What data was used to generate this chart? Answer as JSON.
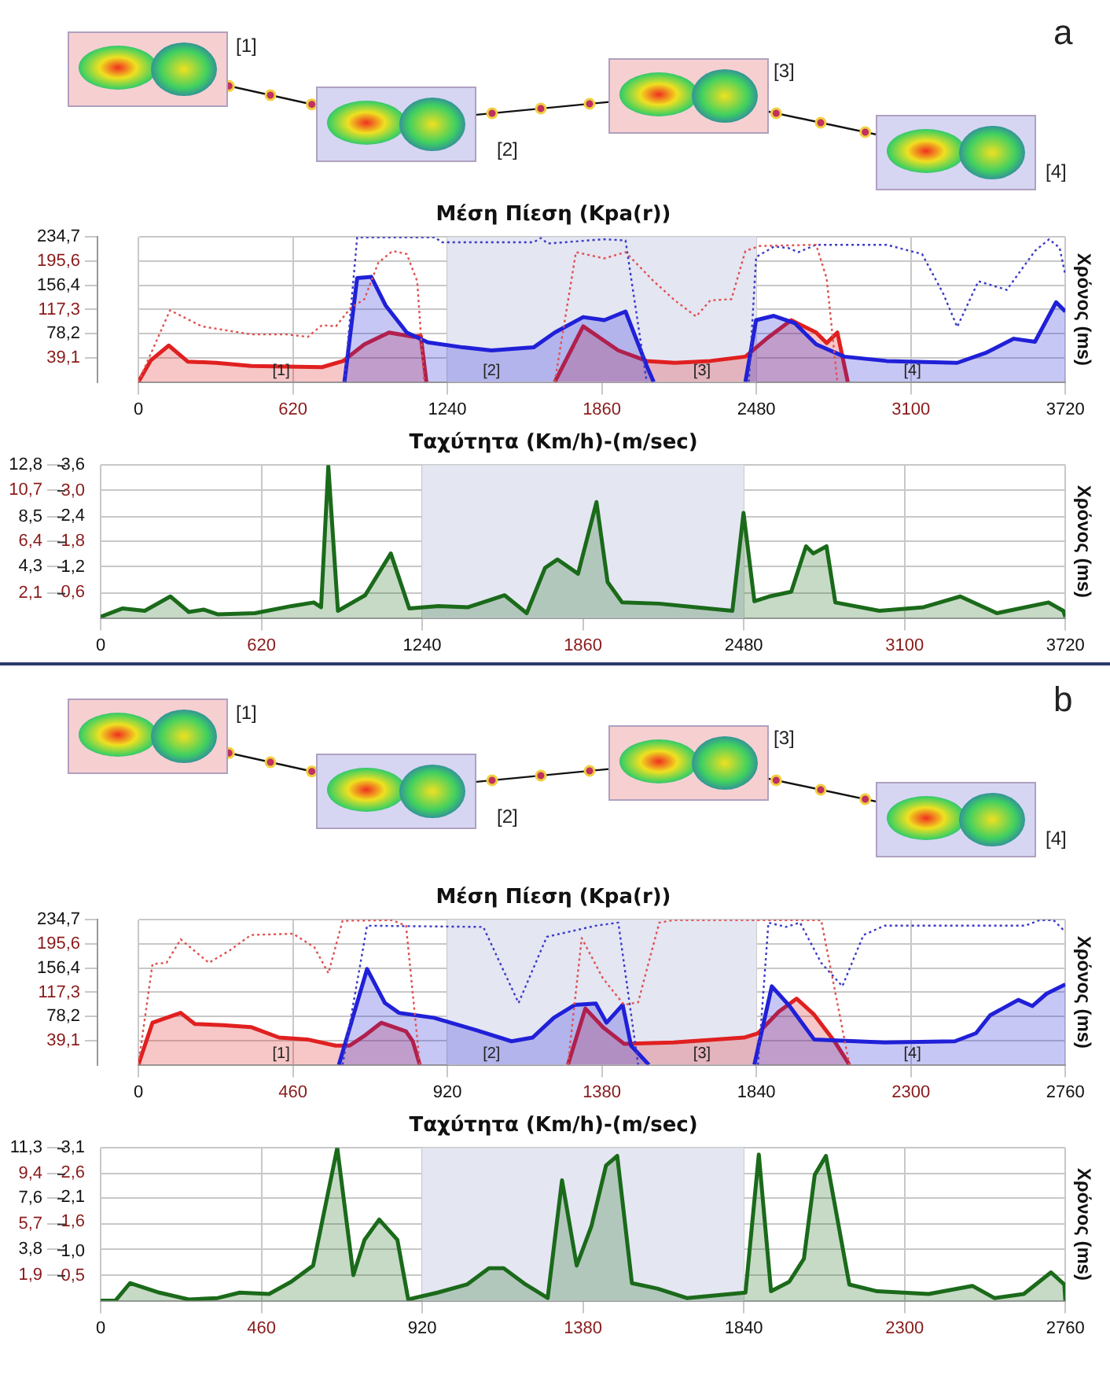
{
  "chart_data": [
    {
      "type": "line",
      "title": "Μέση Πίεση (Kpa(r))",
      "ylabel": "Χρόνος (ms)",
      "xlim": [
        0,
        3720
      ],
      "xticks": [
        0,
        620,
        1240,
        1860,
        2480,
        3100,
        3720
      ],
      "ylim": [
        0,
        234.7
      ],
      "yticks": [
        {
          "value": 39.1,
          "label": "39,1"
        },
        {
          "value": 78.2,
          "label": "78,2"
        },
        {
          "value": 117.3,
          "label": "117,3"
        },
        {
          "value": 156.4,
          "label": "156,4"
        },
        {
          "value": 195.6,
          "label": "195,6"
        },
        {
          "value": 234.7,
          "label": "234,7"
        }
      ],
      "grid": true,
      "bands": [
        {
          "axis": "x",
          "from": 1240,
          "to": 2480,
          "color": "#e4e6f2"
        }
      ],
      "annotations": [
        "[1]",
        "[2]",
        "[3]",
        "[4]",
        "a",
        "[1]",
        "[2]",
        "[3]",
        "[4]"
      ],
      "series": [
        {
          "color": "#e05050",
          "line_style": "dotted",
          "x": [
            0,
            127,
            255,
            453,
            595,
            680,
            737,
            793,
            850,
            907,
            963,
            1020,
            1077,
            1119,
            1147,
            1400,
            1671,
            1756,
            1870,
            1955,
            2068,
            2153,
            2238,
            2295,
            2380,
            2436,
            2493,
            2720,
            2762,
            2805
          ],
          "values": [
            0,
            116,
            90,
            77,
            77,
            73,
            92,
            90,
            119,
            134,
            193,
            212,
            207,
            163,
            0,
            null,
            0,
            210,
            200,
            210,
            163,
            132,
            106,
            132,
            134,
            212,
            220,
            222,
            168,
            0
          ]
        },
        {
          "color": "#3a3ac8",
          "line_style": "dotted",
          "x": [
            827,
            878,
            1190,
            1218,
            1586,
            1615,
            1643,
            1870,
            1955,
            2040,
            2250,
            2450,
            2479,
            2550,
            2607,
            2649,
            2720,
            3003,
            3145,
            3230,
            3286,
            3371,
            3485,
            3598,
            3655,
            3697,
            3720
          ],
          "values": [
            0,
            234,
            234,
            226,
            226,
            233,
            224,
            231,
            229,
            0,
            null,
            0,
            202,
            219,
            217,
            210,
            222,
            222,
            207,
            143,
            89,
            163,
            149,
            212,
            231,
            217,
            173
          ]
        },
        {
          "type": "area",
          "color": "#2020d8",
          "x": [
            827,
            878,
            935,
            992,
            1077,
            1162,
            1303,
            1417,
            1586,
            1671,
            1785,
            1870,
            1955,
            2040,
            2068,
            2250,
            2436,
            2479,
            2550,
            2635,
            2720,
            2833,
            3003,
            3286,
            3400,
            3513,
            3598,
            3683,
            3720
          ],
          "values": [
            0,
            168,
            170,
            124,
            80,
            64,
            56,
            51,
            56,
            80,
            105,
            100,
            114,
            26,
            0,
            null,
            0,
            100,
            107,
            95,
            61,
            41,
            34,
            31,
            47,
            70,
            65,
            129,
            114
          ]
        },
        {
          "type": "area",
          "color": "#e02020",
          "x": [
            0,
            50,
            122,
            198,
            312,
            453,
            737,
            822,
            907,
            1006,
            1105,
            1133,
            1156,
            1400,
            1671,
            1785,
            1926,
            2040,
            2153,
            2295,
            2436,
            2521,
            2620,
            2720,
            2762,
            2805,
            2847
          ],
          "values": [
            0,
            35,
            59,
            33,
            31,
            26,
            24,
            34,
            61,
            80,
            73,
            75,
            0,
            null,
            0,
            90,
            51,
            34,
            31,
            34,
            41,
            70,
            100,
            80,
            63,
            80,
            0
          ]
        }
      ]
    },
    {
      "type": "area",
      "title": "Ταχύτητα (Km/h)-(m/sec)",
      "y2label": "Χρόνος (ms)",
      "xlim": [
        0,
        3720
      ],
      "xticks": [
        0,
        620,
        1240,
        1860,
        2480,
        3100,
        3720
      ],
      "ylim": [
        0,
        12.8
      ],
      "yticks": [
        {
          "value": 2.1,
          "label": "2,1"
        },
        {
          "value": 4.3,
          "label": "4,3"
        },
        {
          "value": 6.4,
          "label": "6,4"
        },
        {
          "value": 8.5,
          "label": "8,5"
        },
        {
          "value": 10.7,
          "label": "10,7"
        },
        {
          "value": 12.8,
          "label": "12,8"
        }
      ],
      "y2lim": [
        0,
        3.6
      ],
      "y2ticks": [
        {
          "value": 0.6,
          "label": "0,6"
        },
        {
          "value": 1.2,
          "label": "1,2"
        },
        {
          "value": 1.8,
          "label": "1,8"
        },
        {
          "value": 2.4,
          "label": "2,4"
        },
        {
          "value": 3.0,
          "label": "3,0"
        },
        {
          "value": 3.6,
          "label": "3,6"
        }
      ],
      "grid": true,
      "bands": [
        {
          "axis": "x",
          "from": 1240,
          "to": 2480,
          "color": "#e4e6f2"
        }
      ],
      "series": [
        {
          "color": "#1a6a1a",
          "x": [
            0,
            85,
            170,
            269,
            340,
            397,
            453,
            595,
            737,
            822,
            850,
            878,
            915,
            1020,
            1119,
            1190,
            1303,
            1417,
            1558,
            1643,
            1714,
            1762,
            1841,
            1912,
            1955,
            2011,
            2153,
            2295,
            2436,
            2479,
            2521,
            2578,
            2663,
            2720,
            2748,
            2799,
            2833,
            3003,
            3173,
            3315,
            3456,
            3655,
            3712,
            3720
          ],
          "values": [
            0.1,
            0.8,
            0.6,
            1.8,
            0.5,
            0.7,
            0.3,
            0.4,
            1.0,
            1.3,
            0.9,
            12.7,
            0.6,
            1.9,
            5.4,
            0.8,
            1.0,
            0.9,
            1.9,
            0.4,
            4.2,
            4.9,
            3.7,
            9.7,
            3.0,
            1.3,
            1.2,
            0.9,
            0.6,
            8.8,
            1.4,
            1.8,
            2.2,
            6.0,
            5.4,
            6.0,
            1.3,
            0.6,
            0.9,
            1.8,
            0.4,
            1.3,
            0.6,
            0.1
          ]
        }
      ]
    },
    {
      "type": "line",
      "title": "Μέση Πίεση (Kpa(r))",
      "ylabel": "Χρόνος (ms)",
      "xlim": [
        0,
        2760
      ],
      "xticks": [
        0,
        460,
        920,
        1380,
        1840,
        2300,
        2760
      ],
      "ylim": [
        0,
        234.7
      ],
      "yticks": [
        {
          "value": 39.1,
          "label": "39,1"
        },
        {
          "value": 78.2,
          "label": "78,2"
        },
        {
          "value": 117.3,
          "label": "117,3"
        },
        {
          "value": 156.4,
          "label": "156,4"
        },
        {
          "value": 195.6,
          "label": "195,6"
        },
        {
          "value": 234.7,
          "label": "234,7"
        }
      ],
      "grid": true,
      "bands": [
        {
          "axis": "x",
          "from": 920,
          "to": 1840,
          "color": "#e4e6f2"
        }
      ],
      "annotations": [
        "[1]",
        "[2]",
        "[3]",
        "[4]",
        "b",
        "[1]",
        "[2]",
        "[3]",
        "[4]"
      ],
      "series": [
        {
          "color": "#e05050",
          "line_style": "dotted",
          "x": [
            0,
            42,
            84,
            126,
            210,
            272,
            335,
            461,
            524,
            566,
            608,
            755,
            797,
            838,
            1050,
            1279,
            1320,
            1383,
            1446,
            1488,
            1551,
            1593,
            2033,
            2117
          ],
          "values": [
            0,
            163,
            165,
            203,
            165,
            185,
            210,
            212,
            190,
            148,
            233,
            234,
            225,
            0,
            null,
            0,
            205,
            140,
            97,
            101,
            230,
            234,
            234,
            0
          ]
        },
        {
          "color": "#3a3ac8",
          "line_style": "dotted",
          "x": [
            608,
            681,
            1027,
            1132,
            1216,
            1362,
            1429,
            1488,
            1680,
            1845,
            1876,
            1928,
            1970,
            2033,
            2096,
            2159,
            2222,
            2641,
            2683,
            2725,
            2760
          ],
          "values": [
            0,
            225,
            223,
            100,
            207,
            225,
            230,
            0,
            null,
            0,
            230,
            223,
            230,
            165,
            127,
            210,
            225,
            225,
            234,
            234,
            215
          ]
        },
        {
          "type": "area",
          "color": "#2020d8",
          "x": [
            597,
            681,
            734,
            776,
            880,
            1006,
            1111,
            1174,
            1237,
            1300,
            1362,
            1394,
            1442,
            1467,
            1520,
            1680,
            1834,
            1886,
            1939,
            2012,
            2222,
            2431,
            2494,
            2536,
            2620,
            2662,
            2704,
            2760
          ],
          "values": [
            0,
            155,
            100,
            84,
            76,
            56,
            38,
            44,
            76,
            97,
            99,
            68,
            97,
            31,
            0,
            null,
            0,
            127,
            95,
            41,
            36,
            38,
            51,
            80,
            105,
            95,
            115,
            130
          ]
        },
        {
          "type": "area",
          "color": "#e02020",
          "x": [
            0,
            42,
            126,
            168,
            252,
            335,
            419,
            503,
            587,
            629,
            671,
            723,
            797,
            817,
            838,
            1050,
            1279,
            1331,
            1383,
            1446,
            1593,
            1803,
            1845,
            1907,
            1960,
            2012,
            2075,
            2117
          ],
          "values": [
            0,
            68,
            84,
            66,
            64,
            61,
            44,
            41,
            31,
            31,
            46,
            68,
            54,
            38,
            0,
            null,
            0,
            91,
            61,
            34,
            36,
            44,
            51,
            86,
            107,
            81,
            36,
            0
          ]
        }
      ]
    },
    {
      "type": "area",
      "title": "Ταχύτητα (Km/h)-(m/sec)",
      "y2label": "Χρόνος (ms)",
      "xlim": [
        0,
        2760
      ],
      "xticks": [
        0,
        460,
        920,
        1380,
        1840,
        2300,
        2760
      ],
      "ylim": [
        0,
        11.3
      ],
      "yticks": [
        {
          "value": 1.9,
          "label": "1,9"
        },
        {
          "value": 3.8,
          "label": "3,8"
        },
        {
          "value": 5.7,
          "label": "5,7"
        },
        {
          "value": 7.6,
          "label": "7,6"
        },
        {
          "value": 9.4,
          "label": "9,4"
        },
        {
          "value": 11.3,
          "label": "11,3"
        }
      ],
      "y2lim": [
        0,
        3.1
      ],
      "y2ticks": [
        {
          "value": 0.5,
          "label": "0,5"
        },
        {
          "value": 1.0,
          "label": "1,0"
        },
        {
          "value": 1.6,
          "label": "1,6"
        },
        {
          "value": 2.1,
          "label": "2,1"
        },
        {
          "value": 2.6,
          "label": "2,6"
        },
        {
          "value": 3.1,
          "label": "3,1"
        }
      ],
      "grid": true,
      "bands": [
        {
          "axis": "x",
          "from": 920,
          "to": 1840,
          "color": "#e4e6f2"
        }
      ],
      "series": [
        {
          "color": "#1a6a1a",
          "x": [
            0,
            42,
            84,
            168,
            252,
            335,
            398,
            482,
            545,
            608,
            677,
            723,
            755,
            797,
            849,
            880,
            964,
            1048,
            1111,
            1153,
            1216,
            1279,
            1320,
            1362,
            1404,
            1446,
            1478,
            1520,
            1593,
            1677,
            1803,
            1845,
            1883,
            1918,
            1970,
            2012,
            2043,
            2075,
            2142,
            2222,
            2369,
            2494,
            2557,
            2641,
            2719,
            2757,
            2760
          ],
          "values": [
            0,
            0,
            1.3,
            0.6,
            0.1,
            0.2,
            0.6,
            0.5,
            1.4,
            2.6,
            11.3,
            1.9,
            4.5,
            6.0,
            4.5,
            0.1,
            0.6,
            1.2,
            2.4,
            2.4,
            1.2,
            0.2,
            8.9,
            2.6,
            5.5,
            10.0,
            10.7,
            1.3,
            0.9,
            0.2,
            0.5,
            0.6,
            10.8,
            0.7,
            1.4,
            3.1,
            9.3,
            10.7,
            1.2,
            0.7,
            0.5,
            1.1,
            0.2,
            0.5,
            2.1,
            1.2,
            0
          ]
        }
      ]
    }
  ]
}
